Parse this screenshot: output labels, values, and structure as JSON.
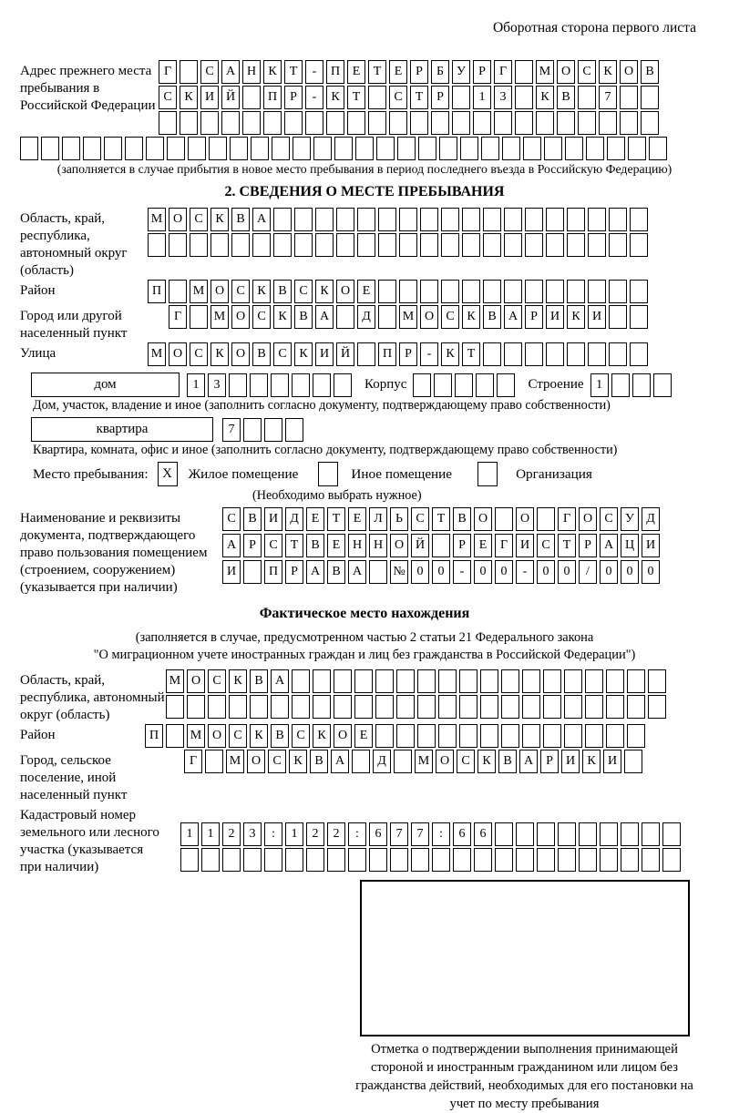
{
  "page": {
    "header_note": "Оборотная сторона первого листа"
  },
  "prev_address": {
    "label": "Адрес прежнего места пребывания в Российской Федерации",
    "rows": [
      {
        "text": "Г САНКТ-ПЕТЕРБУРГ МОСКОВ",
        "cells": 24
      },
      {
        "text": "СКИЙ ПР-КТ СТР 13 КВ 7",
        "cells": 24
      },
      {
        "text": "",
        "cells": 24
      },
      {
        "text": "",
        "cells": 31
      }
    ],
    "note": "(заполняется в случае прибытия в новое место пребывания в период последнего въезда в Российскую Федерацию)"
  },
  "section2": {
    "title": "2. СВЕДЕНИЯ О МЕСТЕ ПРЕБЫВАНИЯ",
    "region": {
      "label": "Область, край, республика, автономный округ (область)",
      "rows": [
        {
          "text": "МОСКВА",
          "cells": 24
        },
        {
          "text": "",
          "cells": 24
        }
      ]
    },
    "district": {
      "label": "Район",
      "row": {
        "text": "П МОСКВСКОЕ",
        "cells": 24
      }
    },
    "city": {
      "label": "Город или другой населенный пункт",
      "row": {
        "text": "Г МОСКВА Д МОСКВАРИКИ",
        "cells": 23
      }
    },
    "street": {
      "label": "Улица",
      "row": {
        "text": "МОСКОВСКИЙ ПР-КТ",
        "cells": 24
      }
    },
    "house": {
      "box_label": "дом",
      "number_row": {
        "text": "13",
        "cells": 8
      },
      "korpus_label": "Корпус",
      "korpus_row": {
        "text": "",
        "cells": 5
      },
      "stroenie_label": "Строение",
      "stroenie_row": {
        "text": "1",
        "cells": 4
      },
      "caption": "Дом, участок, владение и иное (заполнить согласно документу, подтверждающему право собственности)"
    },
    "apartment": {
      "box_label": "квартира",
      "number_row": {
        "text": "7",
        "cells": 4
      },
      "caption": "Квартира, комната, офис и иное (заполнить согласно документу, подтверждающему право собственности)"
    },
    "stay_type": {
      "label": "Место пребывания:",
      "options": [
        {
          "label": "Жилое помещение",
          "mark": "X",
          "checked": true
        },
        {
          "label": "Иное помещение",
          "mark": "",
          "checked": false
        },
        {
          "label": "Организация",
          "mark": "",
          "checked": false
        }
      ],
      "note": "(Необходимо выбрать нужное)"
    },
    "document": {
      "label": "Наименование и реквизиты документа, подтверждающего право пользования помещением (строением, сооружением) (указывается при наличии)",
      "rows": [
        {
          "text": "СВИДЕТЕЛЬСТВО О ГОСУД",
          "cells": 21
        },
        {
          "text": "АРСТВЕННОЙ РЕГИСТРАЦИ",
          "cells": 21
        },
        {
          "text": "И ПРАВА №00-00-00/000",
          "cells": 21
        }
      ]
    }
  },
  "actual_location": {
    "title": "Фактическое место нахождения",
    "intro_line1": "(заполняется в случае, предусмотренном частью 2 статьи 21 Федерального закона",
    "intro_line2": "\"О миграционном учете иностранных граждан и лиц без гражданства в Российской Федерации\")",
    "region": {
      "label": "Область, край, республика, автономный округ (область)",
      "rows": [
        {
          "text": "МОСКВА",
          "cells": 24
        },
        {
          "text": "",
          "cells": 24
        }
      ]
    },
    "district": {
      "label": "Район",
      "row": {
        "text": "П МОСКВСКОЕ",
        "cells": 24
      }
    },
    "city": {
      "label": "Город, сельское поселение, иной населенный пункт",
      "row": {
        "text": "Г МОСКВА Д МОСКВАРИКИ",
        "cells": 22
      }
    },
    "cadastral": {
      "label": "Кадастровый номер земельного или лесного участка (указывается при наличии)",
      "rows": [
        {
          "text": "1123:122:677:66",
          "cells": 24
        },
        {
          "text": "",
          "cells": 24
        }
      ]
    },
    "stamp_note": "Отметка о подтверждении выполнения принимающей стороной и иностранным гражданином или лицом без гражданства действий, необходимых для его постановки на учет по месту пребывания"
  }
}
